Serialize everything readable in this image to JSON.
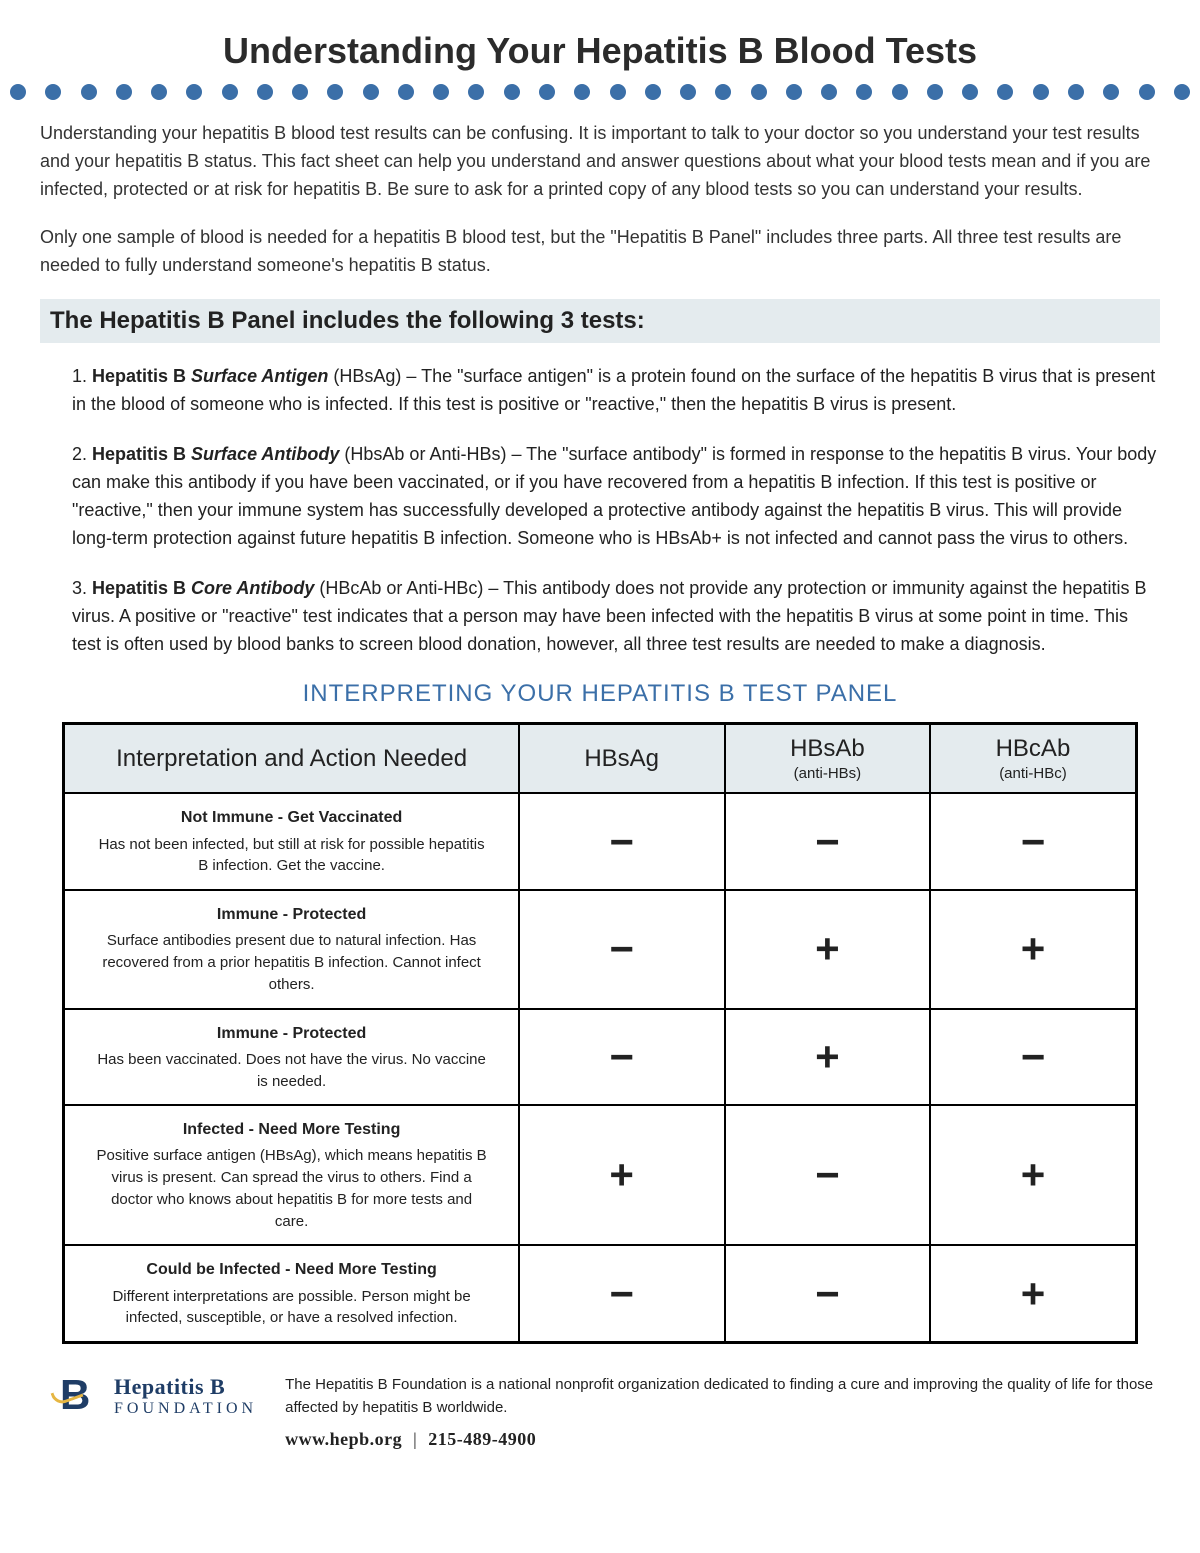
{
  "title": "Understanding Your Hepatitis B Blood Tests",
  "dots": {
    "count": 34,
    "color": "#3b6fa8"
  },
  "intro": {
    "p1": "Understanding your hepatitis B blood test results can be confusing. It is important to talk to your doctor so you understand your test results and your hepatitis B status. This fact sheet can help you understand and answer questions about what your blood tests mean and if you are infected, protected or at risk for hepatitis B. Be sure to ask for a printed copy of any blood tests so you can understand your results.",
    "p2": "Only one sample of blood is needed for a hepatitis B blood test, but the \"Hepatitis B Panel\" includes three parts. All three test results are needed to fully understand someone's hepatitis B status."
  },
  "section_heading": "The Hepatitis B Panel includes the following 3 tests:",
  "tests": [
    {
      "num": "1.",
      "lead": "Hepatitis B ",
      "ital": "Surface Antigen",
      "paren": " (HBsAg) – ",
      "body": "The \"surface antigen\" is a protein found on the surface of the hepatitis B virus that is present in the blood of someone who is infected. If this test is positive or \"reactive,\" then the hepatitis B virus is present."
    },
    {
      "num": "2.",
      "lead": "Hepatitis B ",
      "ital": "Surface Antibody",
      "paren": " (HbsAb or Anti-HBs) – ",
      "body": "The \"surface antibody\" is formed in response to the hepatitis B virus. Your body can make this antibody if you have been vaccinated, or if you have recovered from a hepatitis B infection. If this test is positive or \"reactive,\" then your immune system has successfully developed a protective antibody against the hepatitis B virus. This will provide long-term protection against future hepatitis B infection. Someone who is HBsAb+ is not infected and cannot pass the virus to others."
    },
    {
      "num": "3.",
      "lead": "Hepatitis B ",
      "ital": "Core Antibody",
      "paren": " (HBcAb or Anti-HBc) – ",
      "body": "This antibody does not provide any protection or immunity against the hepatitis B virus. A positive or \"reactive\" test indicates that a person may have been infected with the hepatitis B virus at some point in time. This test is often used by blood banks to screen blood donation, however, all three test results are needed to make a diagnosis."
    }
  ],
  "panel_title": "INTERPRETING YOUR HEPATITIS B TEST PANEL",
  "panel": {
    "columns": [
      {
        "label": "Interpretation and Action Needed",
        "sub": ""
      },
      {
        "label": "HBsAg",
        "sub": ""
      },
      {
        "label": "HBsAb",
        "sub": "(anti-HBs)"
      },
      {
        "label": "HBcAb",
        "sub": "(anti-HBc)"
      }
    ],
    "rows": [
      {
        "title": "Not Immune - Get Vaccinated",
        "desc": "Has not been infected, but still at risk for possible hepatitis B infection. Get the vaccine.",
        "hbsag": "−",
        "hbsab": "−",
        "hbcab": "−"
      },
      {
        "title": "Immune - Protected",
        "desc": "Surface antibodies present due to natural infection. Has recovered from a prior hepatitis B infection. Cannot infect others.",
        "hbsag": "−",
        "hbsab": "+",
        "hbcab": "+"
      },
      {
        "title": "Immune - Protected",
        "desc": "Has been vaccinated. Does not have the virus. No vaccine is needed.",
        "hbsag": "−",
        "hbsab": "+",
        "hbcab": "−"
      },
      {
        "title": "Infected - Need More Testing",
        "desc": "Positive surface antigen (HBsAg), which means hepatitis B virus is present. Can spread the virus to others. Find a doctor who knows about hepatitis B for more tests and care.",
        "hbsag": "+",
        "hbsab": "−",
        "hbcab": "+"
      },
      {
        "title": "Could be Infected - Need More Testing",
        "desc": "Different interpretations are possible. Person might be infected, susceptible, or have a resolved infection.",
        "hbsag": "−",
        "hbsab": "−",
        "hbcab": "+"
      }
    ]
  },
  "footer": {
    "logo_line1": "Hepatitis B",
    "logo_line2": "FOUNDATION",
    "blurb": "The Hepatitis B Foundation is a national nonprofit organization dedicated to finding a cure and improving the quality of life for those affected by hepatitis B worldwide.",
    "website": "www.hepb.org",
    "phone": "215-489-4900"
  },
  "colors": {
    "accent_blue": "#3b6fa8",
    "heading_bg": "#e4ebee",
    "logo_navy": "#1f3d66",
    "logo_gold": "#e6b642"
  }
}
